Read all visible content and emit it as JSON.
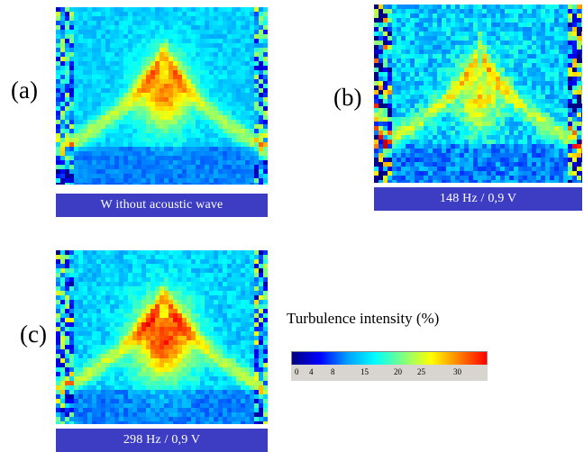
{
  "panels": [
    {
      "letter": "(a)",
      "caption": "W ithout acoustic wave"
    },
    {
      "letter": "(b)",
      "caption": "148 Hz  /  0,9 V"
    },
    {
      "letter": "(c)",
      "caption": "298 Hz  /  0,9 V"
    }
  ],
  "colorbar": {
    "title": "Turbulence intensity (%)",
    "tick_labels": [
      "0",
      "4",
      "8",
      "15",
      "20",
      "25",
      "30"
    ],
    "colors": [
      "#000080",
      "#0000ff",
      "#00a0ff",
      "#00ffff",
      "#80ff80",
      "#ffff00",
      "#ff8000",
      "#ff0000"
    ]
  }
}
